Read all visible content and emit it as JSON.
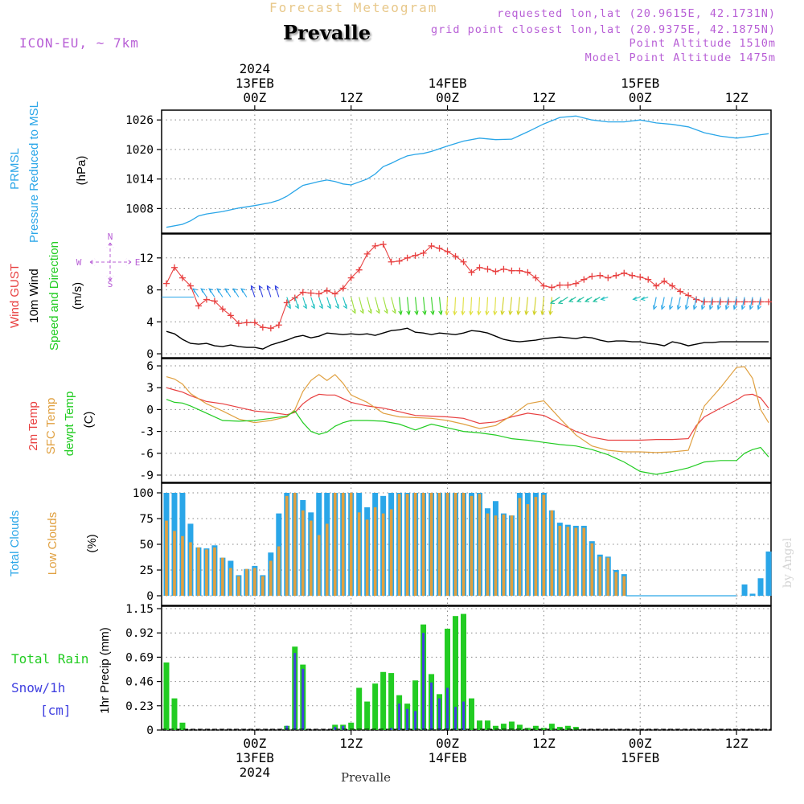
{
  "header": {
    "supertitle": "Forecast Meteogram",
    "title": "Prevalle",
    "model": "ICON-EU, ~ 7km",
    "requested": "requested lon,lat (20.9615E, 42.1731N)",
    "grid_point": "grid point closest lon,lat (20.9375E, 42.1875N)",
    "point_altitude": "Point Altitude 1510m",
    "model_altitude": "Model Point Altitude 1475m",
    "footer": "Prevalle",
    "watermark": "by Angel"
  },
  "colors": {
    "pressure": "#2aa6e8",
    "gust": "#e84040",
    "wind": "#000000",
    "t2m": "#e84040",
    "sfc": "#e0a040",
    "dewpt": "#22cc22",
    "total_cloud": "#2aa6e8",
    "low_cloud": "#e0a040",
    "rain": "#22cc22",
    "snow": "#4040e0",
    "purple": "#b85fd6"
  },
  "time_axis": {
    "top_labels": [
      {
        "h": 0,
        "lines": [
          "2024",
          "13FEB",
          "00Z"
        ]
      },
      {
        "h": 12,
        "lines": [
          "12Z"
        ]
      },
      {
        "h": 24,
        "lines": [
          "14FEB",
          "00Z"
        ]
      },
      {
        "h": 36,
        "lines": [
          "12Z"
        ]
      },
      {
        "h": 48,
        "lines": [
          "15FEB",
          "00Z"
        ]
      },
      {
        "h": 60,
        "lines": [
          "12Z"
        ]
      }
    ],
    "bottom_labels": [
      {
        "h": 0,
        "lines": [
          "00Z",
          "13FEB",
          "2024"
        ]
      },
      {
        "h": 12,
        "lines": [
          "12Z"
        ]
      },
      {
        "h": 24,
        "lines": [
          "00Z",
          "14FEB"
        ]
      },
      {
        "h": 36,
        "lines": [
          "12Z"
        ]
      },
      {
        "h": 48,
        "lines": [
          "00Z",
          "15FEB"
        ]
      },
      {
        "h": 60,
        "lines": [
          "12Z"
        ]
      }
    ]
  },
  "panel_labels": {
    "pressure": {
      "left": [
        "PRMSL",
        "Pressure Reduced to MSL"
      ],
      "unit": "(hPa)"
    },
    "wind": {
      "gust": "Wind GUST",
      "wind": "10m Wind",
      "dir": "Speed and Direction",
      "unit": "(m/s)",
      "compass_n": "N",
      "compass_s": "S",
      "compass_w": "W",
      "compass_e": "E"
    },
    "temp": {
      "t2m": "2m Temp",
      "sfc": "SFC Temp",
      "dew": "dewpt Temp",
      "unit": "(C)"
    },
    "cloud": {
      "total": "Total Clouds",
      "low": "Low Clouds",
      "unit": "(%)"
    },
    "precip": {
      "rain": "Total  Rain",
      "snow": "Snow/1h",
      "snow_unit": "[cm]",
      "unit": "1hr Precip (mm)"
    }
  },
  "chart_data": [
    {
      "type": "line",
      "title": "PRMSL Pressure Reduced to MSL",
      "ylabel": "(hPa)",
      "ylim": [
        1003,
        1027.5
      ],
      "yticks": [
        1008,
        1014,
        1020,
        1026
      ],
      "x_hours": [
        -11,
        -9,
        -8,
        -7,
        -6,
        -4,
        -2,
        0,
        2,
        3,
        4,
        5,
        6,
        7,
        8,
        9,
        10,
        11,
        12,
        13,
        14,
        15,
        16,
        17,
        18,
        19,
        20,
        21,
        22,
        24,
        26,
        28,
        30,
        32,
        34,
        36,
        38,
        40,
        42,
        44,
        46,
        48,
        50,
        52,
        54,
        56,
        58,
        60,
        61,
        62,
        63,
        64
      ],
      "series": [
        {
          "name": "PRMSL",
          "values": [
            1004.2,
            1004.8,
            1005.5,
            1006.5,
            1006.9,
            1007.4,
            1008.1,
            1008.6,
            1009.2,
            1009.7,
            1010.5,
            1011.6,
            1012.7,
            1013.1,
            1013.5,
            1013.8,
            1013.5,
            1013.0,
            1012.8,
            1013.4,
            1014.0,
            1015.0,
            1016.5,
            1017.2,
            1018.0,
            1018.7,
            1019.0,
            1019.2,
            1019.6,
            1020.7,
            1021.7,
            1022.3,
            1022.0,
            1022.1,
            1023.6,
            1025.2,
            1026.5,
            1026.8,
            1026.0,
            1025.6,
            1025.6,
            1026.0,
            1025.4,
            1025.1,
            1024.6,
            1023.4,
            1022.7,
            1022.3,
            1022.5,
            1022.7,
            1023.0,
            1023.2
          ]
        }
      ]
    },
    {
      "type": "line",
      "title": "Wind GUST / 10m Wind Speed and Direction",
      "ylabel": "(m/s)",
      "ylim": [
        -0.5,
        15
      ],
      "yticks": [
        0,
        4,
        8,
        12
      ],
      "x_hours": [
        -11,
        -10,
        -9,
        -8,
        -7,
        -6,
        -5,
        -4,
        -3,
        -2,
        -1,
        0,
        1,
        2,
        3,
        4,
        5,
        6,
        7,
        8,
        9,
        10,
        11,
        12,
        13,
        14,
        15,
        16,
        17,
        18,
        19,
        20,
        21,
        22,
        23,
        24,
        25,
        26,
        27,
        28,
        29,
        30,
        31,
        32,
        33,
        34,
        35,
        36,
        37,
        38,
        39,
        40,
        41,
        42,
        43,
        44,
        45,
        46,
        47,
        48,
        49,
        50,
        51,
        52,
        53,
        54,
        55,
        56,
        57,
        58,
        59,
        60,
        61,
        62,
        63,
        64
      ],
      "series": [
        {
          "name": "Wind GUST",
          "values": [
            8.8,
            10.8,
            9.5,
            8.5,
            6.0,
            6.8,
            6.6,
            5.6,
            4.8,
            3.8,
            3.9,
            3.9,
            3.3,
            3.2,
            3.6,
            6.4,
            7.0,
            7.7,
            7.6,
            7.5,
            7.9,
            7.5,
            8.2,
            9.5,
            10.5,
            12.5,
            13.5,
            13.7,
            11.5,
            11.6,
            12.0,
            12.3,
            12.6,
            13.5,
            13.2,
            12.8,
            12.2,
            11.5,
            10.2,
            10.8,
            10.6,
            10.3,
            10.6,
            10.4,
            10.4,
            10.2,
            9.5,
            8.5,
            8.3,
            8.6,
            8.6,
            8.8,
            9.3,
            9.7,
            9.8,
            9.5,
            9.8,
            10.1,
            9.8,
            9.6,
            9.3,
            8.5,
            9.1,
            8.5,
            7.8,
            7.3,
            6.8,
            6.5,
            6.5,
            6.5,
            6.5,
            6.5,
            6.5,
            6.5,
            6.5,
            6.5
          ]
        },
        {
          "name": "10m Wind",
          "values": [
            2.8,
            2.5,
            1.8,
            1.3,
            1.2,
            1.3,
            1.0,
            0.9,
            1.1,
            0.9,
            0.8,
            0.8,
            0.6,
            1.1,
            1.4,
            1.7,
            2.1,
            2.3,
            2.0,
            2.2,
            2.6,
            2.5,
            2.4,
            2.5,
            2.4,
            2.5,
            2.3,
            2.6,
            2.9,
            3.0,
            3.2,
            2.7,
            2.6,
            2.4,
            2.6,
            2.5,
            2.4,
            2.6,
            2.9,
            2.8,
            2.6,
            2.2,
            1.8,
            1.6,
            1.5,
            1.6,
            1.7,
            1.9,
            2.0,
            2.1,
            2.0,
            1.9,
            2.1,
            2.0,
            1.7,
            1.5,
            1.6,
            1.6,
            1.5,
            1.5,
            1.3,
            1.2,
            1.0,
            1.5,
            1.3,
            1.0,
            1.2,
            1.4,
            1.4,
            1.5,
            1.5,
            1.5,
            1.5,
            1.5,
            1.5,
            1.5
          ]
        }
      ]
    },
    {
      "type": "line",
      "title": "2m Temp / SFC Temp / dewpt Temp",
      "ylabel": "(C)",
      "ylim": [
        -10,
        7
      ],
      "yticks": [
        6,
        3,
        0,
        -3,
        -6,
        -9
      ],
      "x_hours": [
        -11,
        -10,
        -9,
        -8,
        -6,
        -4,
        -2,
        0,
        2,
        4,
        5,
        6,
        7,
        8,
        9,
        10,
        11,
        12,
        14,
        16,
        18,
        20,
        22,
        24,
        26,
        28,
        30,
        32,
        34,
        36,
        38,
        40,
        42,
        44,
        46,
        48,
        50,
        52,
        54,
        55,
        56,
        58,
        60,
        61,
        62,
        63,
        64
      ],
      "series": [
        {
          "name": "2m Temp",
          "values": [
            3.0,
            2.7,
            2.4,
            1.9,
            1.1,
            0.8,
            0.3,
            -0.2,
            -0.4,
            -0.7,
            -0.4,
            0.8,
            1.6,
            2.1,
            2.0,
            2.0,
            1.5,
            1.0,
            0.5,
            0.2,
            -0.3,
            -0.8,
            -0.9,
            -1.0,
            -1.2,
            -1.9,
            -1.7,
            -1.0,
            -0.5,
            -0.8,
            -1.9,
            -3.0,
            -3.8,
            -4.2,
            -4.2,
            -4.2,
            -4.1,
            -4.1,
            -4.0,
            -2.2,
            -1.0,
            0.2,
            1.3,
            2.0,
            2.1,
            1.6,
            0.2
          ]
        },
        {
          "name": "SFC Temp",
          "values": [
            4.5,
            4.2,
            3.5,
            2.2,
            0.8,
            -0.2,
            -1.3,
            -1.8,
            -1.5,
            -1.0,
            0.0,
            2.5,
            4.0,
            4.8,
            4.0,
            4.8,
            3.6,
            2.0,
            1.0,
            -0.5,
            -1.0,
            -1.1,
            -1.2,
            -1.5,
            -2.0,
            -2.6,
            -2.2,
            -0.8,
            0.8,
            1.2,
            -1.2,
            -3.5,
            -5.0,
            -5.6,
            -5.8,
            -5.8,
            -5.9,
            -5.8,
            -5.6,
            -2.5,
            0.5,
            3.0,
            5.8,
            5.9,
            4.3,
            0.0,
            -1.8
          ]
        },
        {
          "name": "dewpt Temp",
          "values": [
            1.4,
            1.0,
            0.9,
            0.5,
            -0.5,
            -1.5,
            -1.6,
            -1.5,
            -1.2,
            -0.9,
            -0.2,
            -1.8,
            -3.0,
            -3.4,
            -3.1,
            -2.3,
            -1.8,
            -1.5,
            -1.5,
            -1.6,
            -2.0,
            -2.8,
            -2.0,
            -2.5,
            -3.0,
            -3.2,
            -3.5,
            -4.0,
            -4.2,
            -4.5,
            -4.8,
            -5.0,
            -5.5,
            -6.2,
            -7.2,
            -8.5,
            -8.9,
            -8.5,
            -8.0,
            -7.6,
            -7.2,
            -7.0,
            -7.0,
            -6.0,
            -5.5,
            -5.2,
            -6.5
          ]
        }
      ]
    },
    {
      "type": "bar",
      "title": "Total Clouds / Low Clouds",
      "ylabel": "(%)",
      "ylim": [
        0,
        100
      ],
      "yticks": [
        0,
        25,
        50,
        75,
        100
      ],
      "x_hours": [
        -11,
        -10,
        -9,
        -8,
        -7,
        -6,
        -5,
        -4,
        -3,
        -2,
        -1,
        0,
        1,
        2,
        3,
        4,
        5,
        6,
        7,
        8,
        9,
        10,
        11,
        12,
        13,
        14,
        15,
        16,
        17,
        18,
        19,
        20,
        21,
        22,
        23,
        24,
        25,
        26,
        27,
        28,
        29,
        30,
        31,
        32,
        33,
        34,
        35,
        36,
        37,
        38,
        39,
        40,
        41,
        42,
        43,
        44,
        45,
        46,
        47,
        48,
        49,
        50,
        51,
        52,
        53,
        54,
        55,
        56,
        57,
        58,
        59,
        60,
        61,
        62,
        63,
        64
      ],
      "series": [
        {
          "name": "Total Clouds",
          "values": [
            100,
            100,
            100,
            70,
            47,
            46,
            49,
            37,
            34,
            20,
            26,
            29,
            20,
            42,
            80,
            100,
            100,
            93,
            81,
            100,
            100,
            100,
            100,
            100,
            100,
            86,
            100,
            97,
            100,
            100,
            100,
            100,
            100,
            100,
            100,
            100,
            100,
            100,
            100,
            100,
            85,
            92,
            80,
            78,
            100,
            100,
            100,
            100,
            83,
            71,
            69,
            68,
            68,
            53,
            40,
            38,
            25,
            21,
            0,
            0,
            0,
            0,
            0,
            0,
            0,
            0,
            0,
            0,
            0,
            0,
            0,
            0,
            11,
            2,
            17,
            43
          ]
        },
        {
          "name": "Low Clouds",
          "values": [
            73,
            63,
            58,
            52,
            47,
            45,
            47,
            37,
            27,
            19,
            26,
            27,
            19,
            34,
            48,
            97,
            100,
            83,
            73,
            59,
            70,
            100,
            100,
            100,
            81,
            74,
            86,
            80,
            84,
            99,
            99,
            100,
            100,
            100,
            100,
            100,
            100,
            100,
            97,
            99,
            80,
            78,
            79,
            78,
            95,
            89,
            96,
            98,
            83,
            68,
            67,
            66,
            66,
            51,
            38,
            37,
            23,
            19,
            0,
            0,
            0,
            0,
            0,
            0,
            0,
            0,
            0,
            0,
            0,
            0,
            0,
            0,
            0,
            0,
            0,
            0
          ]
        }
      ]
    },
    {
      "type": "bar",
      "title": "Total Rain / Snow/1h",
      "ylabel": "1hr Precip (mm)",
      "ylim": [
        0,
        1.15
      ],
      "yticks": [
        0,
        0.23,
        0.46,
        0.69,
        0.92,
        1.15
      ],
      "ytick_labels": [
        "0",
        "0.23",
        "0.46",
        "0.69",
        "0.92",
        "1.15"
      ],
      "x_hours": [
        -11,
        -10,
        -9,
        -8,
        -7,
        -6,
        -5,
        -4,
        -3,
        -2,
        -1,
        0,
        1,
        2,
        3,
        4,
        5,
        6,
        7,
        8,
        9,
        10,
        11,
        12,
        13,
        14,
        15,
        16,
        17,
        18,
        19,
        20,
        21,
        22,
        23,
        24,
        25,
        26,
        27,
        28,
        29,
        30,
        31,
        32,
        33,
        34,
        35,
        36,
        37,
        38,
        39,
        40,
        41,
        42,
        43,
        44,
        45,
        46,
        47,
        48,
        49,
        50,
        51,
        52,
        53,
        54,
        55,
        56,
        57,
        58,
        59,
        60,
        61,
        62,
        63,
        64
      ],
      "series": [
        {
          "name": "Total Rain",
          "values": [
            0.64,
            0.3,
            0.07,
            0,
            0,
            0,
            0,
            0,
            0,
            0,
            0,
            0,
            0,
            0,
            0,
            0.04,
            0.79,
            0.62,
            0,
            0,
            0,
            0.05,
            0.05,
            0.07,
            0.4,
            0.27,
            0.44,
            0.55,
            0.54,
            0.33,
            0.25,
            0.47,
            1.0,
            0.53,
            0.34,
            0.96,
            1.08,
            1.1,
            0.3,
            0.09,
            0.09,
            0.04,
            0.06,
            0.08,
            0.05,
            0.02,
            0.04,
            0.02,
            0.06,
            0.03,
            0.04,
            0.03,
            0,
            0,
            0,
            0,
            0,
            0,
            0,
            0,
            0,
            0,
            0,
            0,
            0,
            0,
            0,
            0,
            0,
            0,
            0,
            0,
            0,
            0,
            0,
            0
          ]
        },
        {
          "name": "Snow/1h",
          "values": [
            0,
            0,
            0,
            0,
            0,
            0,
            0,
            0,
            0,
            0,
            0,
            0,
            0,
            0,
            0,
            0.04,
            0.73,
            0.58,
            0,
            0,
            0,
            0.03,
            0.04,
            0,
            0,
            0,
            0,
            0,
            0.02,
            0.25,
            0.2,
            0.18,
            0.92,
            0.45,
            0.3,
            0.4,
            0.22,
            0.27,
            0,
            0,
            0,
            0,
            0,
            0,
            0,
            0,
            0,
            0,
            0,
            0,
            0,
            0,
            0,
            0,
            0,
            0,
            0,
            0,
            0,
            0,
            0,
            0,
            0,
            0,
            0,
            0,
            0,
            0,
            0,
            0,
            0,
            0,
            0,
            0,
            0,
            0
          ]
        }
      ]
    }
  ]
}
